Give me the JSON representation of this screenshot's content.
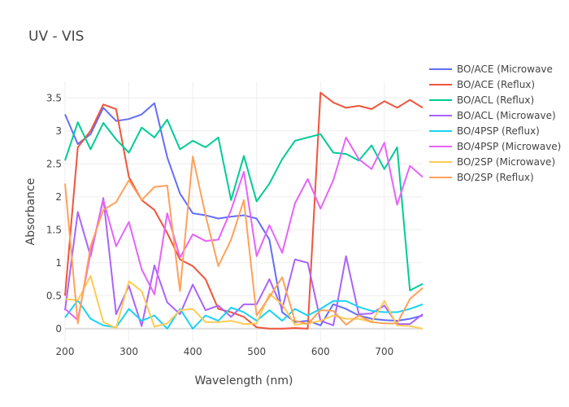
{
  "chart_data": {
    "type": "line",
    "title": "UV - VIS",
    "xlabel": "Wavelength (nm)",
    "ylabel": "Absorbance",
    "xlim": [
      200,
      760
    ],
    "ylim": [
      -0.2,
      3.75
    ],
    "xticks": [
      200,
      300,
      400,
      500,
      600,
      700
    ],
    "yticks": [
      0,
      0.5,
      1,
      1.5,
      2,
      2.5,
      3,
      3.5
    ],
    "grid": true,
    "legend_position": "right",
    "x": [
      200,
      220,
      240,
      260,
      280,
      300,
      320,
      340,
      360,
      380,
      400,
      420,
      440,
      460,
      480,
      500,
      520,
      540,
      560,
      580,
      600,
      620,
      640,
      660,
      680,
      700,
      720,
      740,
      760
    ],
    "series": [
      {
        "name": "BO/ACE (Microwave",
        "color": "#636efa",
        "values": [
          3.25,
          2.8,
          2.95,
          3.35,
          3.15,
          3.18,
          3.25,
          3.42,
          2.6,
          2.05,
          1.75,
          1.72,
          1.67,
          1.7,
          1.72,
          1.67,
          1.35,
          0.25,
          0.1,
          0.12,
          0.05,
          0.37,
          0.3,
          0.2,
          0.15,
          0.13,
          0.12,
          0.15,
          0.2
        ]
      },
      {
        "name": "BO/ACE (Reflux)",
        "color": "#ef553b",
        "values": [
          0.5,
          2.75,
          3.0,
          3.4,
          3.33,
          2.3,
          1.95,
          1.8,
          1.45,
          1.05,
          0.95,
          0.75,
          0.3,
          0.25,
          0.18,
          0.02,
          0.0,
          0.0,
          0.01,
          0.0,
          3.58,
          3.43,
          3.35,
          3.38,
          3.33,
          3.45,
          3.35,
          3.47,
          3.35
        ]
      },
      {
        "name": "BO/ACL (Reflux)",
        "color": "#00cc96",
        "values": [
          2.55,
          3.13,
          2.72,
          3.12,
          2.87,
          2.67,
          3.05,
          2.9,
          3.17,
          2.72,
          2.85,
          2.75,
          2.9,
          1.95,
          2.62,
          1.93,
          2.2,
          2.57,
          2.85,
          2.9,
          2.95,
          2.67,
          2.65,
          2.55,
          2.78,
          2.42,
          2.75,
          0.58,
          0.68
        ]
      },
      {
        "name": "BO/ACL (Microwave)",
        "color": "#ab63fa",
        "values": [
          0.28,
          1.77,
          1.1,
          1.98,
          0.22,
          0.65,
          0.04,
          0.96,
          0.4,
          0.22,
          0.67,
          0.28,
          0.35,
          0.18,
          0.37,
          0.37,
          0.75,
          0.3,
          1.05,
          1.0,
          0.12,
          0.05,
          1.1,
          0.22,
          0.23,
          0.35,
          0.07,
          0.07,
          0.22
        ]
      },
      {
        "name": "BO/4PSP (Reflux)",
        "color": "#19d3f3",
        "values": [
          0.17,
          0.43,
          0.15,
          0.05,
          0.02,
          0.3,
          0.12,
          0.2,
          0.0,
          0.3,
          0.0,
          0.2,
          0.12,
          0.32,
          0.25,
          0.12,
          0.28,
          0.12,
          0.3,
          0.2,
          0.3,
          0.42,
          0.42,
          0.33,
          0.27,
          0.25,
          0.25,
          0.3,
          0.37
        ]
      },
      {
        "name": "BO/4PSP (Microwave)",
        "color": "#e763fa",
        "values": [
          0.3,
          0.13,
          1.15,
          1.95,
          1.25,
          1.62,
          0.9,
          0.52,
          1.75,
          1.08,
          1.43,
          1.33,
          1.35,
          1.8,
          2.38,
          1.1,
          1.57,
          1.15,
          1.9,
          2.27,
          1.82,
          2.25,
          2.9,
          2.57,
          2.42,
          2.82,
          1.88,
          2.47,
          2.3
        ]
      },
      {
        "name": "BO/2SP (Microwave)",
        "color": "#fecb52",
        "values": [
          0.45,
          0.43,
          0.8,
          0.1,
          0.01,
          0.72,
          0.57,
          0.03,
          0.08,
          0.28,
          0.3,
          0.1,
          0.1,
          0.12,
          0.07,
          0.08,
          0.53,
          0.37,
          0.06,
          0.08,
          0.12,
          0.2,
          0.15,
          0.15,
          0.1,
          0.42,
          0.05,
          0.04,
          0.0
        ]
      },
      {
        "name": "BO/2SP (Reflux)",
        "color": "#ffa15a",
        "values": [
          2.2,
          0.08,
          1.25,
          1.8,
          1.92,
          2.25,
          1.95,
          2.15,
          2.17,
          0.57,
          2.61,
          1.72,
          0.95,
          1.35,
          1.95,
          0.2,
          0.48,
          0.78,
          0.12,
          0.07,
          0.28,
          0.27,
          0.06,
          0.2,
          0.1,
          0.08,
          0.08,
          0.45,
          0.62
        ]
      }
    ]
  }
}
